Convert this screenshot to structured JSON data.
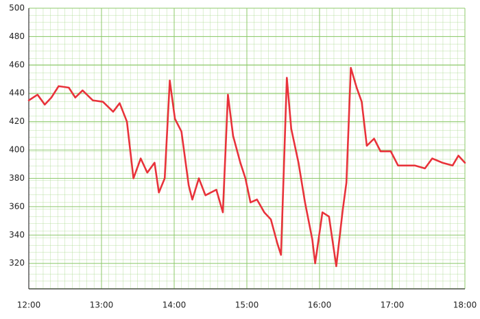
{
  "chart_data": {
    "type": "line",
    "x": [
      12.0,
      12.12,
      12.22,
      12.31,
      12.41,
      12.55,
      12.64,
      12.74,
      12.88,
      13.02,
      13.16,
      13.25,
      13.35,
      13.44,
      13.54,
      13.63,
      13.73,
      13.79,
      13.87,
      13.94,
      14.01,
      14.1,
      14.2,
      14.25,
      14.34,
      14.43,
      14.58,
      14.67,
      14.74,
      14.81,
      14.91,
      14.98,
      15.05,
      15.14,
      15.24,
      15.33,
      15.42,
      15.47,
      15.55,
      15.61,
      15.71,
      15.8,
      15.9,
      15.94,
      16.04,
      16.13,
      16.23,
      16.32,
      16.37,
      16.43,
      16.51,
      16.58,
      16.65,
      16.75,
      16.84,
      16.98,
      17.08,
      17.17,
      17.31,
      17.45,
      17.55,
      17.69,
      17.83,
      17.91,
      18.0
    ],
    "values": [
      435,
      439,
      432,
      437,
      445,
      444,
      437,
      442,
      435,
      434,
      427,
      433,
      420,
      380,
      394,
      384,
      391,
      370,
      380,
      449,
      422,
      413,
      375,
      365,
      380,
      368,
      372,
      356,
      439,
      410,
      391,
      380,
      363,
      365,
      356,
      351,
      334,
      326,
      451,
      415,
      391,
      363,
      337,
      320,
      356,
      353,
      318,
      358,
      377,
      458,
      444,
      434,
      403,
      408,
      399,
      399,
      389,
      389,
      389,
      387,
      394,
      391,
      389,
      396,
      391
    ],
    "color": "#e8323a",
    "xlim": [
      12,
      18
    ],
    "xticks": [
      {
        "value": 12,
        "label": "12:00"
      },
      {
        "value": 13,
        "label": "13:00"
      },
      {
        "value": 14,
        "label": "14:00"
      },
      {
        "value": 15,
        "label": "15:00"
      },
      {
        "value": 16,
        "label": "16:00"
      },
      {
        "value": 17,
        "label": "17:00"
      },
      {
        "value": 18,
        "label": "18:00"
      }
    ],
    "ylim": [
      302,
      500
    ],
    "yticks": [
      320,
      340,
      360,
      380,
      400,
      420,
      440,
      460,
      480,
      500
    ],
    "grid": true
  }
}
